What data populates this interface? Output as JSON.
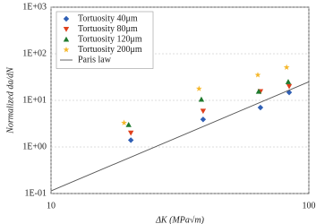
{
  "chart_data": {
    "type": "scatter",
    "xlabel": "ΔK (MPa√m)",
    "ylabel": "Normalized da/dN",
    "log_x": true,
    "log_y": true,
    "grid": true,
    "legend": "upper left",
    "xlim": [
      10,
      100
    ],
    "ylim": [
      0.1,
      1000
    ],
    "xticks": [
      10,
      100
    ],
    "yticks": [
      {
        "value": 0.1,
        "label": "1E-01"
      },
      {
        "value": 1,
        "label": "1E+00"
      },
      {
        "value": 10,
        "label": "1E+01"
      },
      {
        "value": 100,
        "label": "1E+02"
      },
      {
        "value": 1000,
        "label": "1E+03"
      }
    ],
    "series": [
      {
        "name": "Tortuosity 40μm",
        "color": "#2f5fb5",
        "marker": "diamond",
        "x": [
          20.4,
          38.9,
          64.9,
          83.9
        ],
        "values": [
          1.4,
          3.9,
          7.0,
          14.8
        ]
      },
      {
        "name": "Tortuosity 80μm",
        "color": "#e0401c",
        "marker": "triangle-down",
        "x": [
          20.4,
          38.9,
          64.9,
          83.9
        ],
        "values": [
          2.0,
          5.9,
          15.5,
          20
        ]
      },
      {
        "name": "Tortuosity 120μm",
        "color": "#1f7a2e",
        "marker": "triangle-up",
        "x": [
          20.0,
          38.3,
          63.9,
          83.2
        ],
        "values": [
          3.0,
          10.5,
          15.5,
          25
        ]
      },
      {
        "name": "Tortuosity 200μm",
        "color": "#f5b72a",
        "marker": "star",
        "x": [
          19.2,
          37.5,
          63.4,
          82.0
        ],
        "values": [
          3.3,
          17.8,
          35,
          51
        ]
      },
      {
        "name": "Paris law",
        "color": "#555555",
        "marker": "line",
        "x": [
          10,
          100
        ],
        "values": [
          0.114,
          25
        ]
      }
    ]
  }
}
